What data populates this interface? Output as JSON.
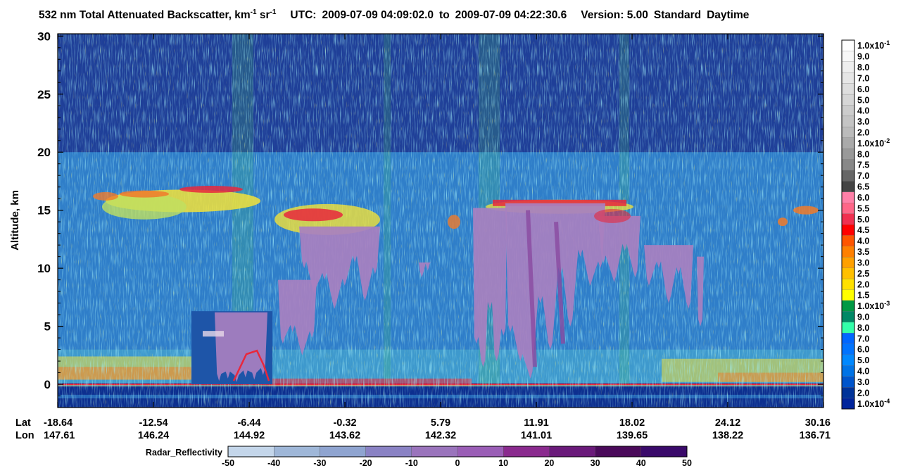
{
  "chart_data": {
    "type": "heatmap",
    "title": {
      "lead": "532 nm Total Attenuated Backscatter, km",
      "exp1": "-1",
      "mid": " sr",
      "exp2": "-1",
      "utc_label": "UTC:",
      "utc_start": "2009-07-09 04:09:02.0",
      "to": "to",
      "utc_end": "2009-07-09 04:22:30.6",
      "version": "Version: 5.00",
      "mode": "Standard",
      "daytime": "Daytime"
    },
    "ylabel": "Altitude, km",
    "ylim": [
      -2.0,
      30.2
    ],
    "y_ticks": [
      0,
      5,
      10,
      15,
      20,
      25,
      30
    ],
    "x_row_labels": [
      "Lat",
      "Lon"
    ],
    "x_ticks": [
      {
        "lat": "-18.64",
        "lon": "147.61"
      },
      {
        "lat": "-12.54",
        "lon": "146.24"
      },
      {
        "lat": "-6.44",
        "lon": "144.92"
      },
      {
        "lat": "-0.32",
        "lon": "143.62"
      },
      {
        "lat": "5.79",
        "lon": "142.32"
      },
      {
        "lat": "11.91",
        "lon": "141.01"
      },
      {
        "lat": "18.02",
        "lon": "139.65"
      },
      {
        "lat": "24.12",
        "lon": "138.22"
      },
      {
        "lat": "30.16",
        "lon": "136.71"
      }
    ],
    "backscatter_colorbar": {
      "labels": [
        "1.0x10",
        "9.0",
        "8.0",
        "7.0",
        "6.0",
        "5.0",
        "4.0",
        "3.0",
        "2.0",
        "1.0x10",
        "8.0",
        "7.5",
        "7.0",
        "6.5",
        "6.0",
        "5.5",
        "5.0",
        "4.5",
        "4.0",
        "3.5",
        "3.0",
        "2.5",
        "2.0",
        "1.5",
        "1.0x10",
        "9.0",
        "8.0",
        "7.0",
        "6.0",
        "5.0",
        "4.0",
        "3.0",
        "2.0",
        "1.0x10"
      ],
      "exponents": {
        "0": "-1",
        "9": "-2",
        "24": "-3",
        "33": "-4"
      },
      "colors": [
        "#ffffff",
        "#f7f7f7",
        "#eeeeee",
        "#e6e6e6",
        "#dedede",
        "#d6d6d6",
        "#cccccc",
        "#c4c4c4",
        "#bbbbbb",
        "#aaaaaa",
        "#999999",
        "#888888",
        "#666666",
        "#444444",
        "#ff80a8",
        "#ff6688",
        "#f03050",
        "#ff0000",
        "#ff5500",
        "#ff8000",
        "#ffa000",
        "#ffc000",
        "#ffe000",
        "#ffff00",
        "#009944",
        "#008866",
        "#33ffaa",
        "#0066ff",
        "#0073ff",
        "#0088ff",
        "#0073e6",
        "#0055cc",
        "#003399",
        "#00249c"
      ]
    },
    "radar_colorbar": {
      "label": "Radar_Reflectivity",
      "ticks": [
        "-50",
        "-40",
        "-30",
        "-20",
        "-10",
        "0",
        "10",
        "20",
        "30",
        "40",
        "50"
      ],
      "colors": [
        "#c4d6ea",
        "#9fb7d8",
        "#8fa4d0",
        "#8a82c4",
        "#9a74bc",
        "#9a5eb6",
        "#8a2a8e",
        "#6a1a7a",
        "#4a0a5a",
        "#3a0a6a"
      ]
    },
    "palette": {
      "noise_dark": "#1f3f98",
      "noise_mid": "#2f7ec9",
      "noise_light": "#3e99cd",
      "green": "#44bb66",
      "yellow": "#f2e23a",
      "cloud_purple": "#a880c0",
      "cloud_deep": "#8a4aa0",
      "red": "#e8283c",
      "orange": "#f07a2a",
      "ground": "#0d2f8f"
    }
  }
}
